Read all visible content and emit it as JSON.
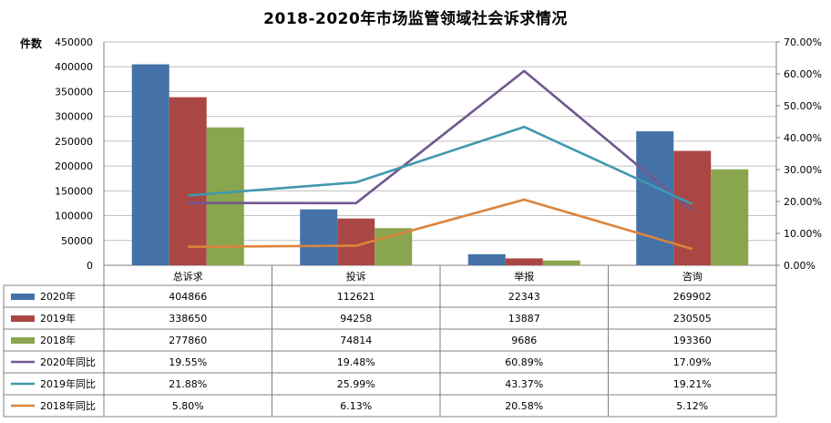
{
  "chart_data": {
    "type": "bar",
    "title": "2018-2020年市场监管领域社会诉求情况",
    "ylabel": "件数",
    "y2label": "",
    "ylim": [
      0,
      450000
    ],
    "y2lim": [
      0,
      0.7
    ],
    "y_ticks": [
      "0",
      "50000",
      "100000",
      "150000",
      "200000",
      "250000",
      "300000",
      "350000",
      "400000",
      "450000"
    ],
    "y2_ticks": [
      "0.00%",
      "10.00%",
      "20.00%",
      "30.00%",
      "40.00%",
      "50.00%",
      "60.00%",
      "70.00%"
    ],
    "categories": [
      "总诉求",
      "投诉",
      "举报",
      "咨询"
    ],
    "grid": true,
    "legend": "data-table",
    "series": [
      {
        "name": "2020年",
        "kind": "bar",
        "axis": "left",
        "color": "#4472a8",
        "values": [
          404866,
          112621,
          22343,
          269902
        ],
        "labels": [
          "404866",
          "112621",
          "22343",
          "269902"
        ]
      },
      {
        "name": "2019年",
        "kind": "bar",
        "axis": "left",
        "color": "#aa4643",
        "values": [
          338650,
          94258,
          13887,
          230505
        ],
        "labels": [
          "338650",
          "94258",
          "13887",
          "230505"
        ]
      },
      {
        "name": "2018年",
        "kind": "bar",
        "axis": "left",
        "color": "#89a54e",
        "values": [
          277860,
          74814,
          9686,
          193360
        ],
        "labels": [
          "277860",
          "74814",
          "9686",
          "193360"
        ]
      },
      {
        "name": "2020年同比",
        "kind": "line",
        "axis": "right",
        "color": "#71588f",
        "values": [
          0.1955,
          0.1948,
          0.6089,
          0.1709
        ],
        "labels": [
          "19.55%",
          "19.48%",
          "60.89%",
          "17.09%"
        ]
      },
      {
        "name": "2019年同比",
        "kind": "line",
        "axis": "right",
        "color": "#4198af",
        "values": [
          0.2188,
          0.2599,
          0.4337,
          0.1921
        ],
        "labels": [
          "21.88%",
          "25.99%",
          "43.37%",
          "19.21%"
        ]
      },
      {
        "name": "2018年同比",
        "kind": "line",
        "axis": "right",
        "color": "#db843d",
        "values": [
          0.058,
          0.0613,
          0.2058,
          0.0512
        ],
        "labels": [
          "5.80%",
          "6.13%",
          "20.58%",
          "5.12%"
        ]
      }
    ]
  }
}
